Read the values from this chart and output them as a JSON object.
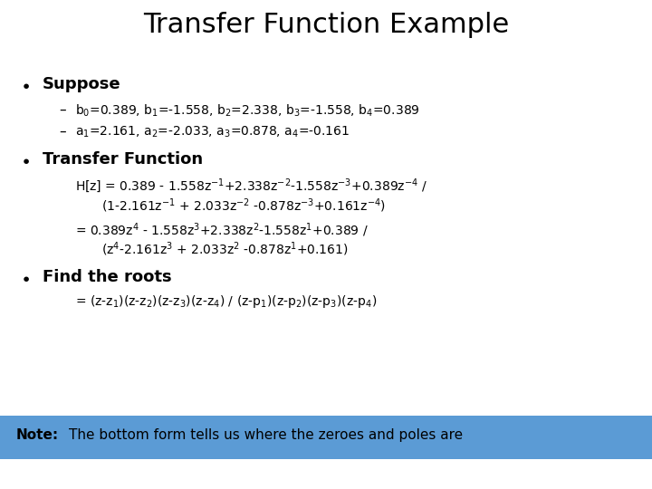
{
  "title": "Transfer Function Example",
  "bg_color": "#ffffff",
  "title_color": "#000000",
  "title_fontsize": 22,
  "fs_bullet": 13,
  "fs_body": 10,
  "note_bg_color": "#5b9bd5",
  "note_text_color": "#000000",
  "note_bold": "Note:",
  "note_rest": " The bottom form tells us where the zeroes and poles are"
}
